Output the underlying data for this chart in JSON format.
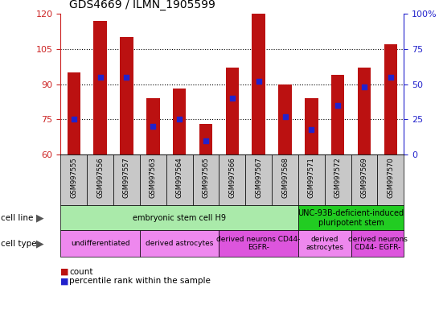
{
  "title": "GDS4669 / ILMN_1905599",
  "samples": [
    "GSM997555",
    "GSM997556",
    "GSM997557",
    "GSM997563",
    "GSM997564",
    "GSM997565",
    "GSM997566",
    "GSM997567",
    "GSM997568",
    "GSM997571",
    "GSM997572",
    "GSM997569",
    "GSM997570"
  ],
  "count_values": [
    95,
    117,
    110,
    84,
    88,
    73,
    97,
    120,
    90,
    84,
    94,
    97,
    107
  ],
  "percentile_values": [
    25,
    55,
    55,
    20,
    25,
    10,
    40,
    52,
    27,
    18,
    35,
    48,
    55
  ],
  "ylim_left": [
    60,
    120
  ],
  "ylim_right": [
    0,
    100
  ],
  "yticks_left": [
    60,
    75,
    90,
    105,
    120
  ],
  "yticks_right": [
    0,
    25,
    50,
    75,
    100
  ],
  "ytick_labels_right": [
    "0",
    "25",
    "50",
    "75",
    "100%"
  ],
  "bar_color": "#bb1111",
  "dot_color": "#2222cc",
  "bar_bottom": 60,
  "cell_line_groups": [
    {
      "label": "embryonic stem cell H9",
      "start": 0,
      "end": 9,
      "color": "#aaeaaa"
    },
    {
      "label": "UNC-93B-deficient-induced\npluripotent stem",
      "start": 9,
      "end": 13,
      "color": "#22cc22"
    }
  ],
  "cell_type_groups": [
    {
      "label": "undifferentiated",
      "start": 0,
      "end": 3,
      "color": "#ee88ee"
    },
    {
      "label": "derived astrocytes",
      "start": 3,
      "end": 6,
      "color": "#ee88ee"
    },
    {
      "label": "derived neurons CD44-\nEGFR-",
      "start": 6,
      "end": 9,
      "color": "#dd55dd"
    },
    {
      "label": "derived\nastrocytes",
      "start": 9,
      "end": 11,
      "color": "#ee88ee"
    },
    {
      "label": "derived neurons\nCD44- EGFR-",
      "start": 11,
      "end": 13,
      "color": "#dd55dd"
    }
  ],
  "tick_color_left": "#cc2222",
  "tick_color_right": "#2222cc",
  "gray_bg": "#c8c8c8"
}
